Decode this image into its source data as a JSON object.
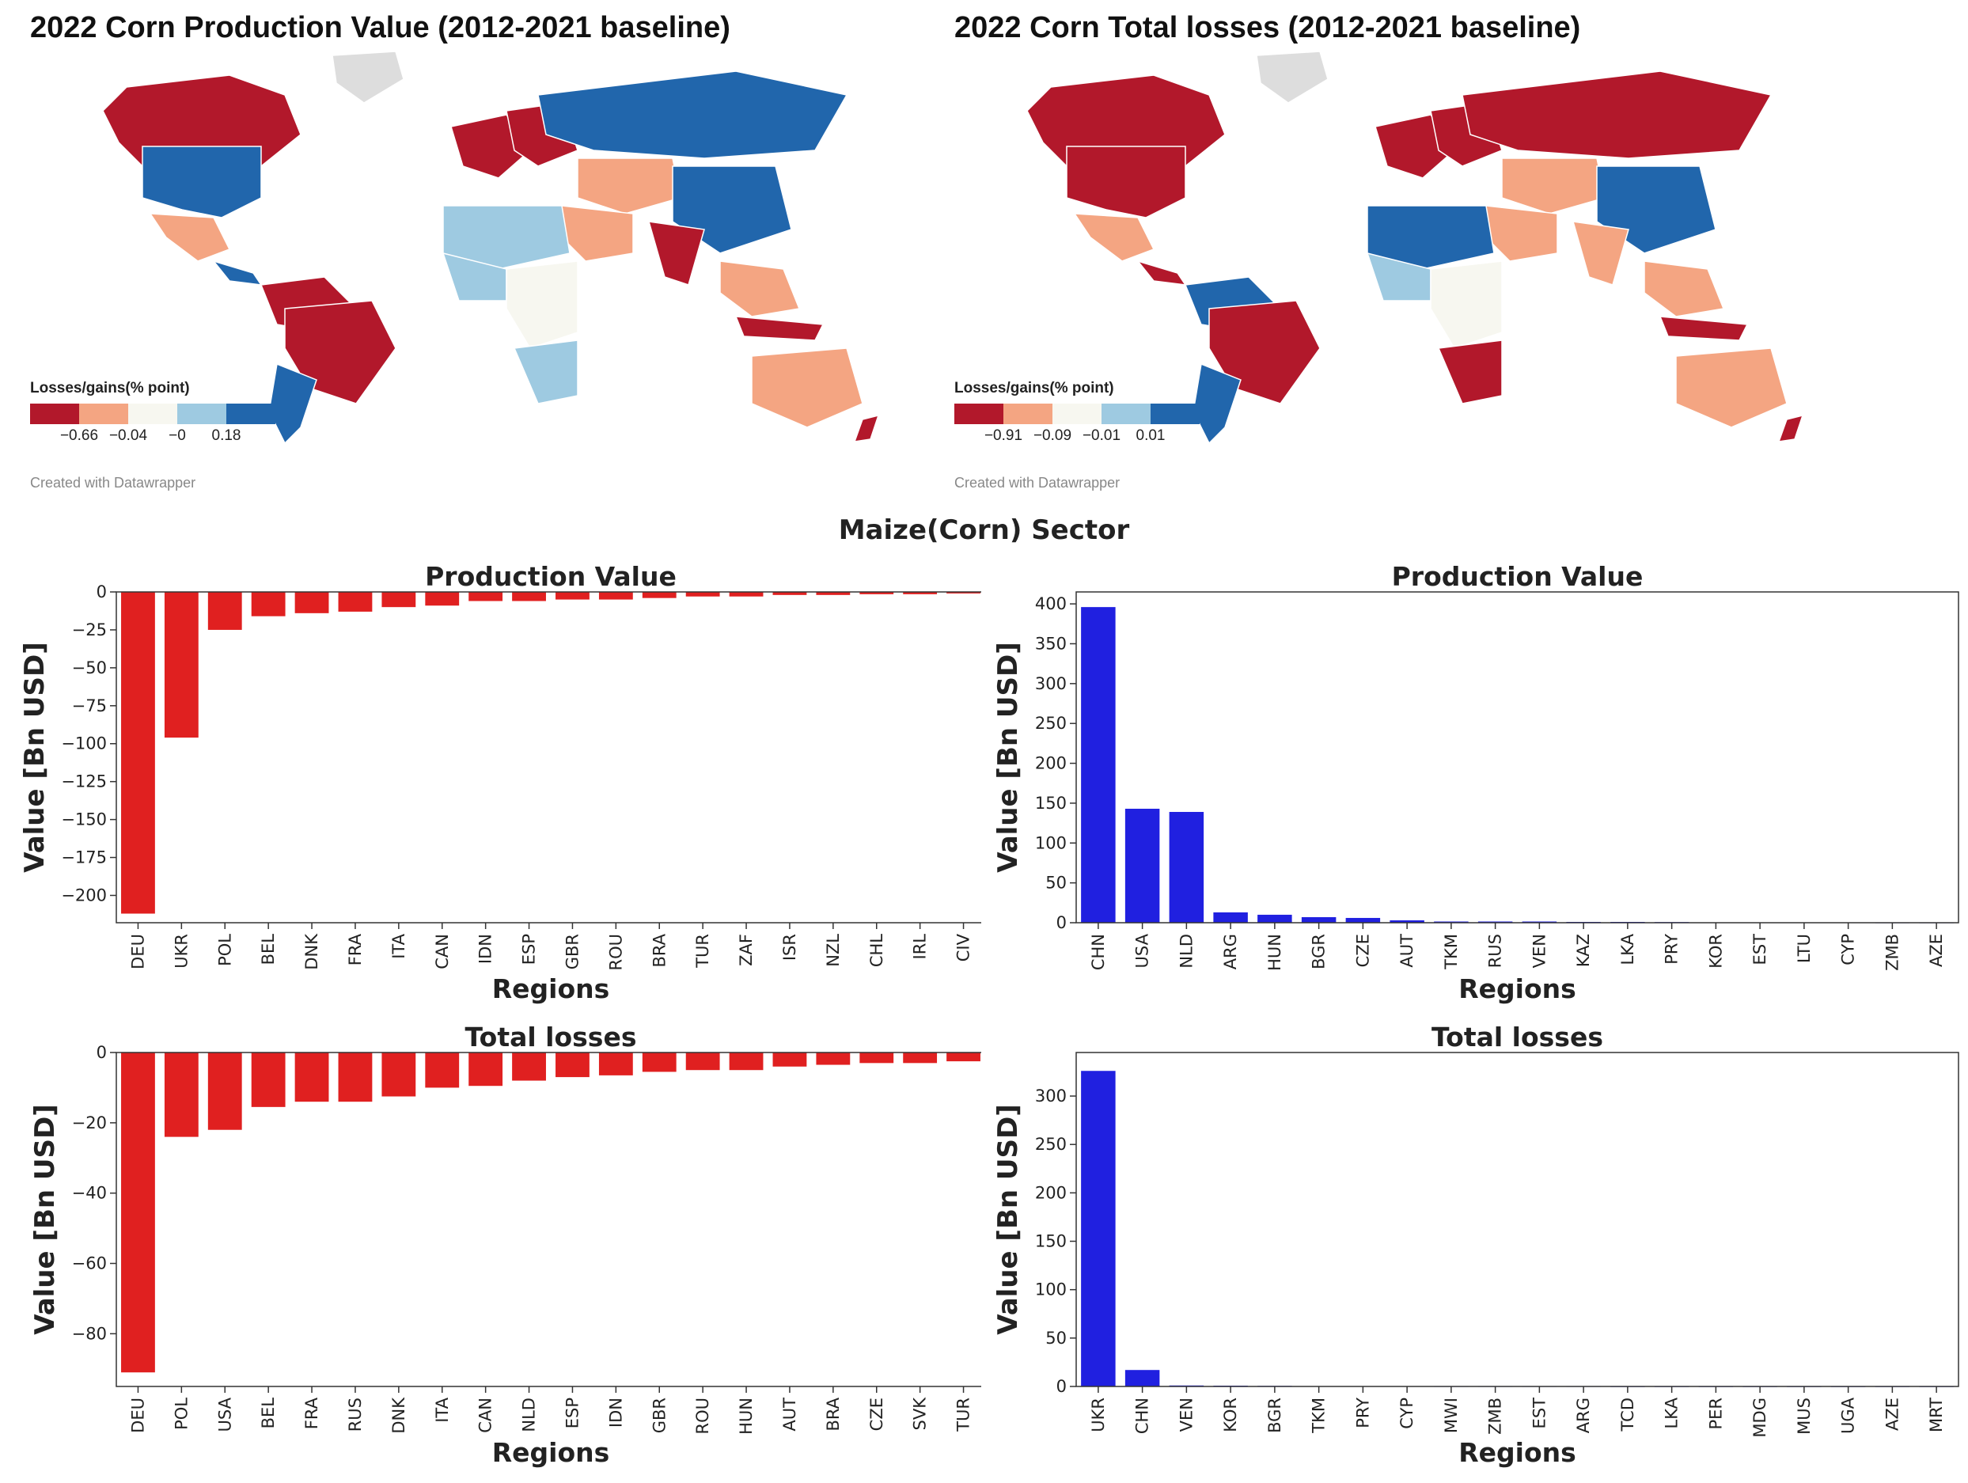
{
  "colors": {
    "neg_strong": "#b2182b",
    "neg_light": "#f4a582",
    "neutral": "#f7f7f0",
    "pos_light": "#9ecae1",
    "pos_strong": "#2166ac",
    "no_data": "#dddddd",
    "bar_red": "#e02020",
    "bar_blue": "#2020e0"
  },
  "maps": [
    {
      "title": "2022 Corn Production Value (2012-2021 baseline)",
      "legend_title": "Losses/gains(% point)",
      "legend_ticks": [
        "−0.66",
        "−0.04",
        "−0",
        "0.18"
      ],
      "credit": "Created with Datawrapper"
    },
    {
      "title": "2022 Corn Total losses (2012-2021 baseline)",
      "legend_title": "Losses/gains(% point)",
      "legend_ticks": [
        "−0.91",
        "−0.09",
        "−0.01",
        "0.01"
      ],
      "credit": "Created with Datawrapper"
    }
  ],
  "super_title": "Maize(Corn) Sector",
  "chart_data": [
    {
      "type": "bar",
      "title": "Production Value",
      "xlabel": "Regions",
      "ylabel": "Value [Bn USD]",
      "color": "bar_red",
      "ylim": [
        -218,
        0
      ],
      "yticks": [
        0,
        -25,
        -50,
        -75,
        -100,
        -125,
        -150,
        -175,
        -200
      ],
      "categories": [
        "DEU",
        "UKR",
        "POL",
        "BEL",
        "DNK",
        "FRA",
        "ITA",
        "CAN",
        "IDN",
        "ESP",
        "GBR",
        "ROU",
        "BRA",
        "TUR",
        "ZAF",
        "ISR",
        "NZL",
        "CHL",
        "IRL",
        "CIV"
      ],
      "values": [
        -212,
        -96,
        -25,
        -16,
        -14,
        -13,
        -10,
        -9,
        -6,
        -6,
        -5,
        -5,
        -4,
        -3,
        -3,
        -2,
        -2,
        -1.5,
        -1.5,
        -1
      ]
    },
    {
      "type": "bar",
      "title": "Production Value",
      "xlabel": "Regions",
      "ylabel": "Value [Bn USD]",
      "color": "bar_blue",
      "ylim": [
        0,
        415
      ],
      "yticks": [
        0,
        50,
        100,
        150,
        200,
        250,
        300,
        350,
        400
      ],
      "categories": [
        "CHN",
        "USA",
        "NLD",
        "ARG",
        "HUN",
        "BGR",
        "CZE",
        "AUT",
        "TKM",
        "RUS",
        "VEN",
        "KAZ",
        "LKA",
        "PRY",
        "KOR",
        "EST",
        "LTU",
        "CYP",
        "ZMB",
        "AZE"
      ],
      "values": [
        396,
        143,
        139,
        13,
        10,
        7,
        6,
        3,
        1.5,
        1.5,
        1.5,
        1,
        1,
        0.8,
        0.5,
        0.5,
        0.3,
        0.3,
        0.2,
        0.2
      ]
    },
    {
      "type": "bar",
      "title": "Total losses",
      "xlabel": "Regions",
      "ylabel": "Value [Bn USD]",
      "color": "bar_red",
      "ylim": [
        -95,
        0
      ],
      "yticks": [
        0,
        -20,
        -40,
        -60,
        -80
      ],
      "categories": [
        "DEU",
        "POL",
        "USA",
        "BEL",
        "FRA",
        "RUS",
        "DNK",
        "ITA",
        "CAN",
        "NLD",
        "ESP",
        "IDN",
        "GBR",
        "ROU",
        "HUN",
        "AUT",
        "BRA",
        "CZE",
        "SVK",
        "TUR"
      ],
      "values": [
        -91,
        -24,
        -22,
        -15.5,
        -14,
        -14,
        -12.5,
        -10,
        -9.5,
        -8,
        -7,
        -6.5,
        -5.5,
        -5,
        -5,
        -4,
        -3.5,
        -3,
        -3,
        -2.5
      ]
    },
    {
      "type": "bar",
      "title": "Total losses",
      "xlabel": "Regions",
      "ylabel": "Value [Bn USD]",
      "color": "bar_blue",
      "ylim": [
        0,
        345
      ],
      "yticks": [
        0,
        50,
        100,
        150,
        200,
        250,
        300
      ],
      "categories": [
        "UKR",
        "CHN",
        "VEN",
        "KOR",
        "BGR",
        "TKM",
        "PRY",
        "CYP",
        "MWI",
        "ZMB",
        "EST",
        "ARG",
        "TCD",
        "LKA",
        "PER",
        "MDG",
        "MUS",
        "UGA",
        "AZE",
        "MRT"
      ],
      "values": [
        326,
        17,
        1,
        0.8,
        0.6,
        0.4,
        0.3,
        0.3,
        0.2,
        0.2,
        0.2,
        0.2,
        0.1,
        0.1,
        0.1,
        0.1,
        0.1,
        0.1,
        0.1,
        0.1
      ]
    }
  ]
}
